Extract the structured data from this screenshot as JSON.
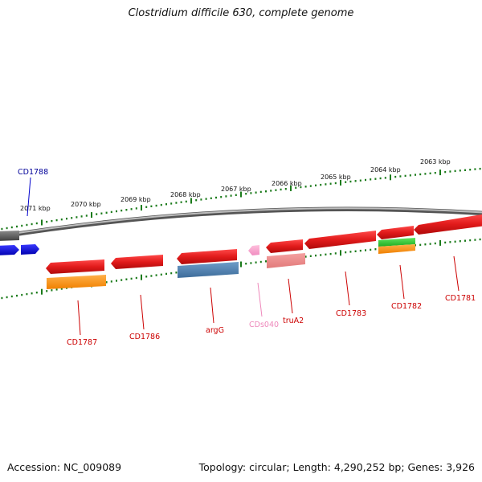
{
  "title": "Clostridium difficile 630, complete genome",
  "accession": "Accession: NC_009089",
  "summary": "Topology: circular; Length: 4,290,252 bp; Genes: 3,926",
  "ruler": [
    {
      "kbp": 2063,
      "label": "2063 kbp"
    },
    {
      "kbp": 2064,
      "label": "2064 kbp"
    },
    {
      "kbp": 2065,
      "label": "2065 kbp"
    },
    {
      "kbp": 2066,
      "label": "2066 kbp"
    },
    {
      "kbp": 2067,
      "label": "2067 kbp"
    },
    {
      "kbp": 2068,
      "label": "2068 kbp"
    },
    {
      "kbp": 2069,
      "label": "2069 kbp"
    },
    {
      "kbp": 2070,
      "label": "2070 kbp"
    },
    {
      "kbp": 2071,
      "label": "2071 kbp"
    }
  ],
  "colors": {
    "cds": "#e11b1b",
    "cds_label": "#cc0000",
    "blue_label": "#000099",
    "pink": "#ff99cc",
    "gene_stub": "#f08a8a",
    "orange": "#ff8c00",
    "steel": "#4a7fb0",
    "green": "#33cc33",
    "ruler": "#1a7a1a",
    "backbone": "#888888"
  },
  "genes": [
    {
      "name": "cd1788",
      "label": "CD1788",
      "color": "#0000cc"
    },
    {
      "name": "cd1787",
      "label": "CD1787",
      "color": "#cc0000"
    },
    {
      "name": "cd1786",
      "label": "CD1786",
      "color": "#cc0000"
    },
    {
      "name": "argg",
      "label": "argG",
      "color": "#cc0000"
    },
    {
      "name": "cds040",
      "label": "CDs040",
      "color": "#ee88bb"
    },
    {
      "name": "trua2",
      "label": "truA2",
      "color": "#cc0000"
    },
    {
      "name": "cd1783",
      "label": "CD1783",
      "color": "#cc0000"
    },
    {
      "name": "cd1782",
      "label": "CD1782",
      "color": "#cc0000"
    },
    {
      "name": "cd1781",
      "label": "CD1781",
      "color": "#cc0000"
    }
  ]
}
